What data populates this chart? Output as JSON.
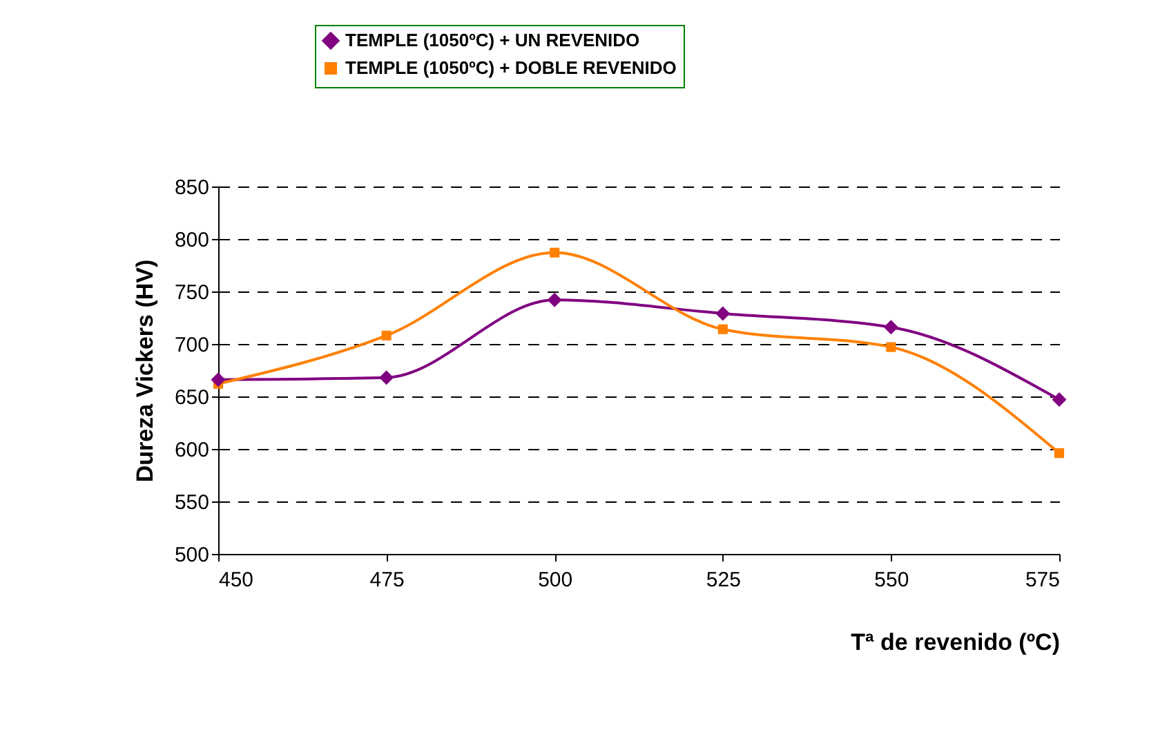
{
  "chart_data": {
    "type": "line",
    "xlabel": "Tª de revenido (ºC)",
    "ylabel": "Dureza Vickers (HV)",
    "x": [
      450,
      475,
      500,
      525,
      550,
      575
    ],
    "series": [
      {
        "name": "TEMPLE (1050ºC) + UN REVENIDO",
        "color": "#800080",
        "marker": "diamond",
        "values": [
          666,
          668,
          742,
          729,
          716,
          647
        ]
      },
      {
        "name": "TEMPLE (1050ºC) + DOBLE REVENIDO",
        "color": "#ff8000",
        "marker": "square",
        "values": [
          662,
          708,
          787,
          714,
          697,
          596
        ]
      }
    ],
    "xlim": [
      450,
      575
    ],
    "xticks": [
      450,
      475,
      500,
      525,
      550,
      575
    ],
    "ylim": [
      500,
      850
    ],
    "yticks": [
      500,
      550,
      600,
      650,
      700,
      750,
      800,
      850
    ],
    "grid": "y",
    "legend": "top",
    "line_style": "solid"
  }
}
